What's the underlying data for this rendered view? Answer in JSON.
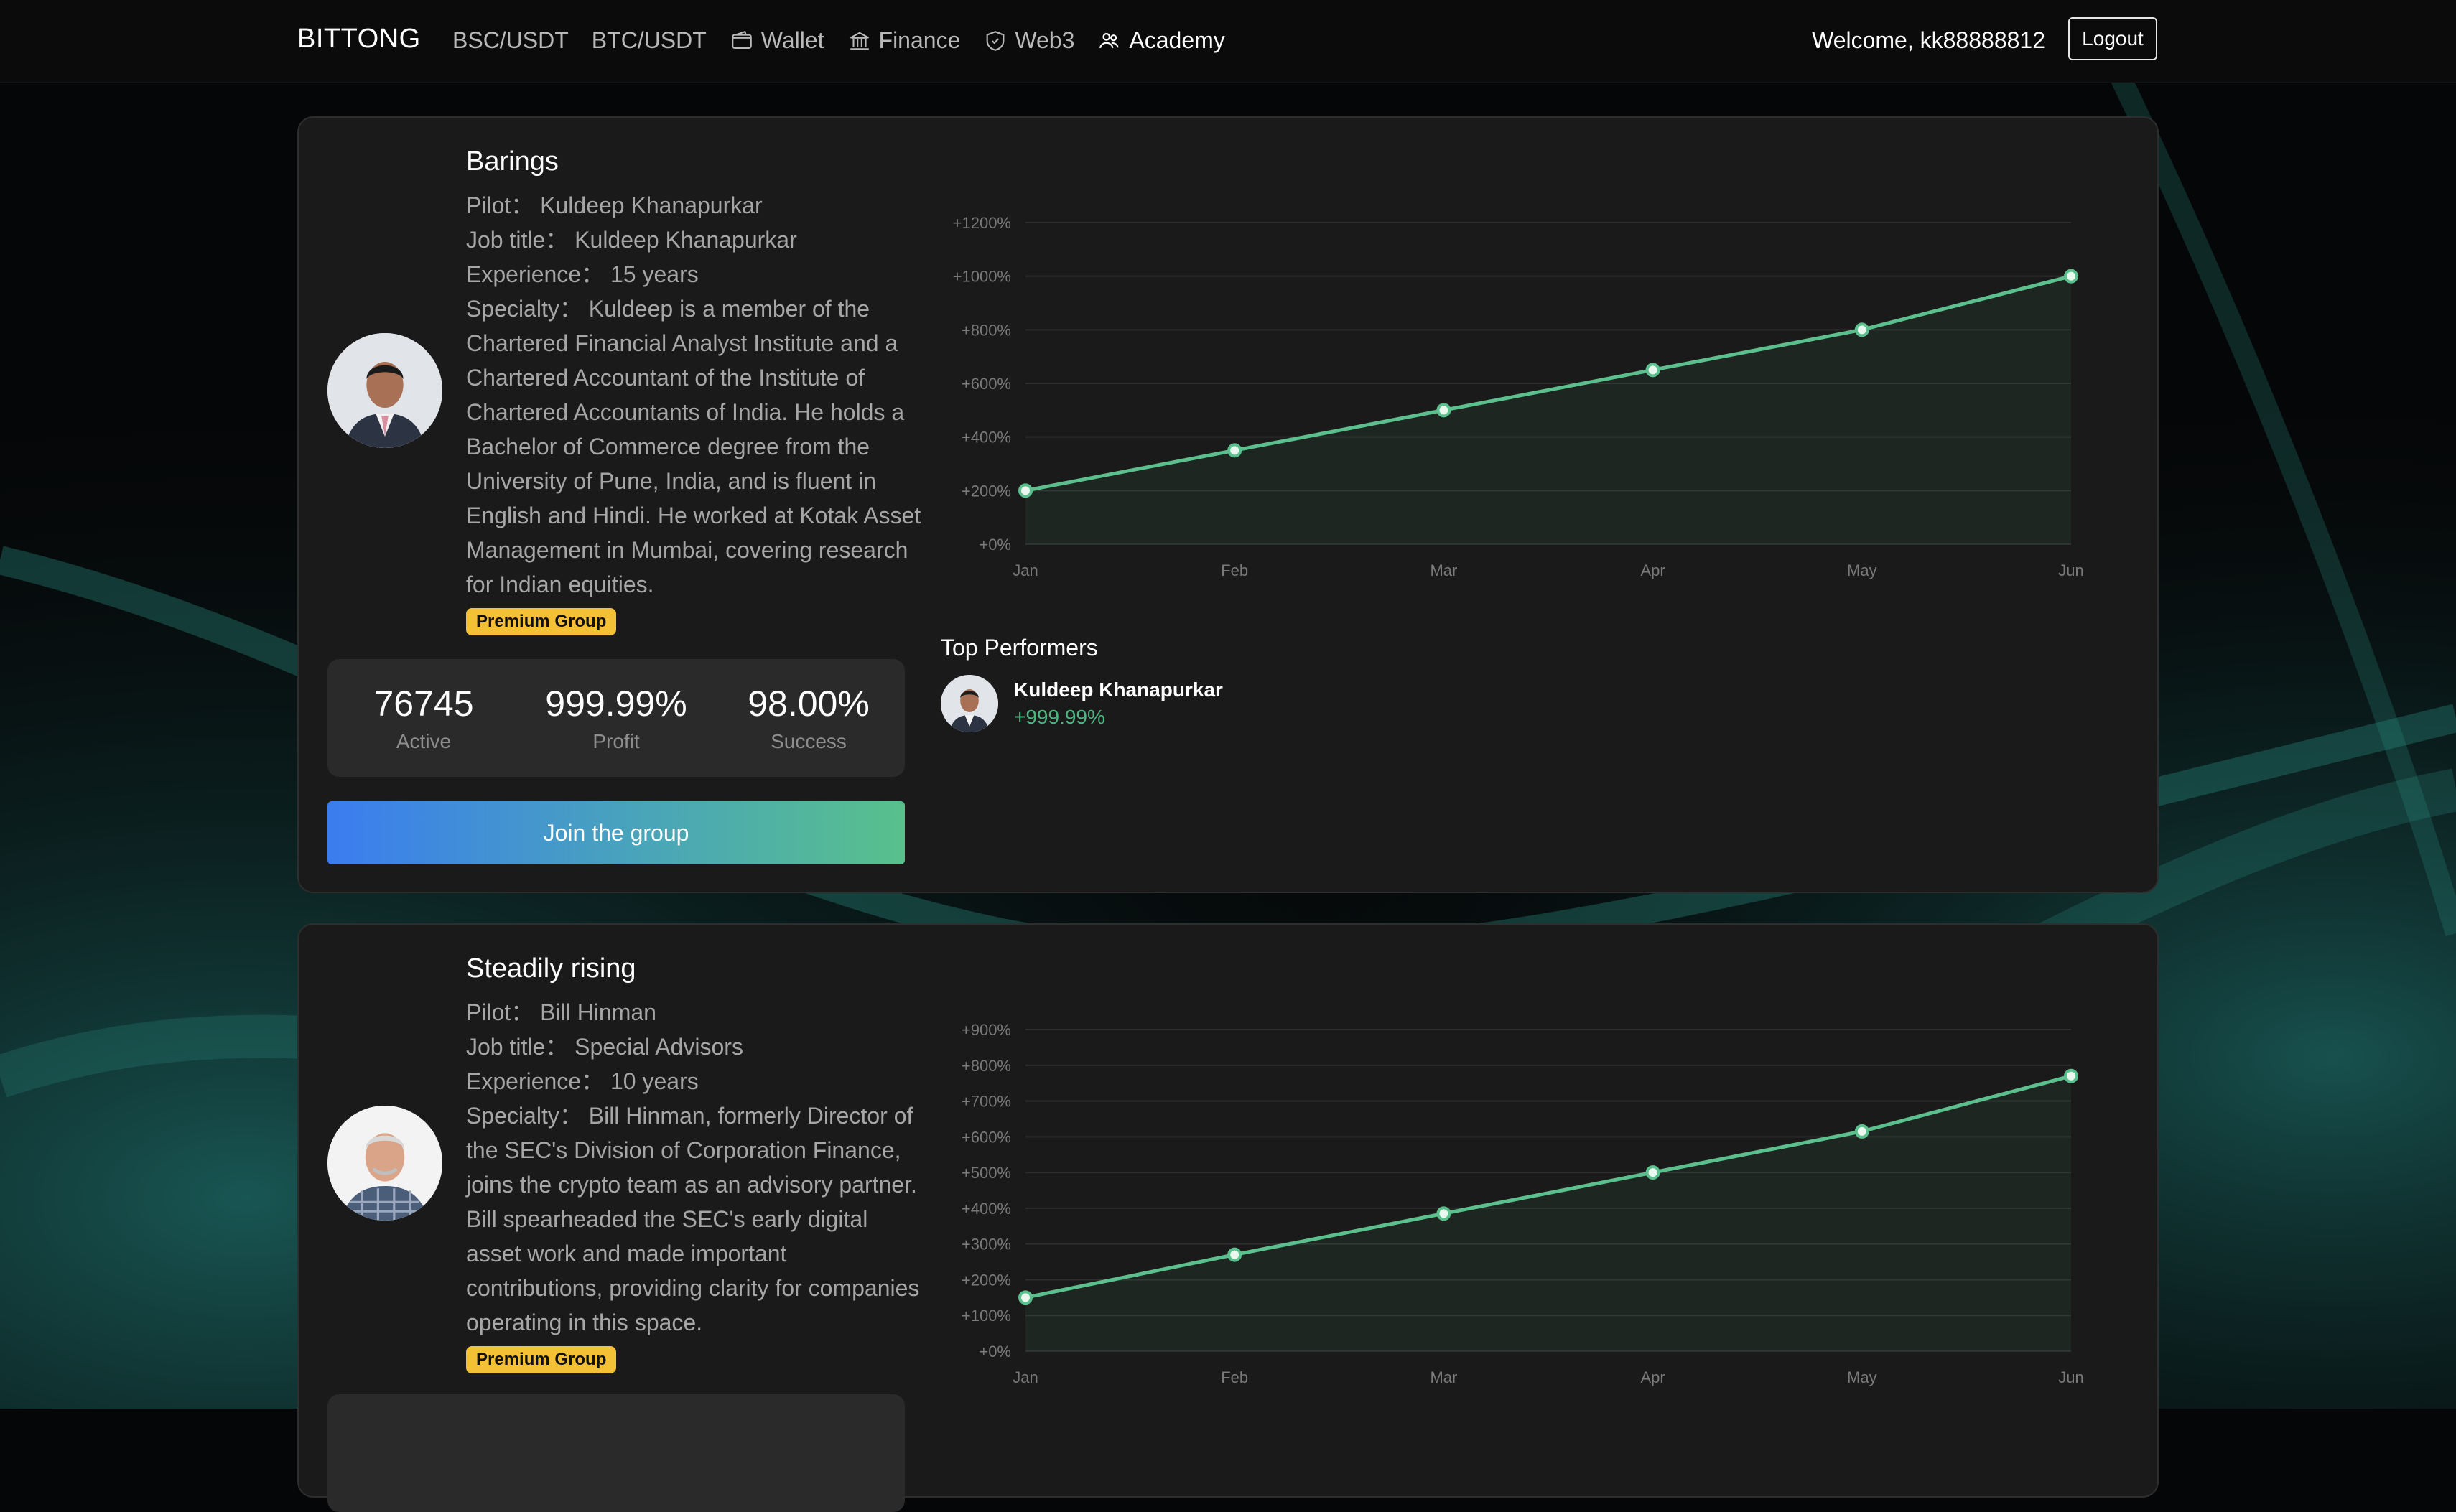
{
  "nav": {
    "brand": "BITTONG",
    "links": [
      {
        "label": "BSC/USDT",
        "icon": ""
      },
      {
        "label": "BTC/USDT",
        "icon": ""
      },
      {
        "label": "Wallet",
        "icon": "wallet-icon"
      },
      {
        "label": "Finance",
        "icon": "bank-icon"
      },
      {
        "label": "Web3",
        "icon": "shield-icon"
      },
      {
        "label": "Academy",
        "icon": "users-icon"
      }
    ],
    "welcome": "Welcome, kk88888812",
    "logout": "Logout"
  },
  "cards": [
    {
      "title": "Barings",
      "pilot": "Pilot： Kuldeep Khanapurkar",
      "job_title": "Job title： Kuldeep Khanapurkar",
      "experience": "Experience： 15 years",
      "specialty": "Specialty： Kuldeep is a member of the Chartered Financial Analyst Institute and a Chartered Accountant of the Institute of Chartered Accountants of India. He holds a Bachelor of Commerce degree from the University of Pune, India, and is fluent in English and Hindi. He worked at Kotak Asset Management in Mumbai, covering research for Indian equities.",
      "badge": "Premium Group",
      "stats": [
        {
          "value": "76745",
          "label": "Active"
        },
        {
          "value": "999.99%",
          "label": "Profit"
        },
        {
          "value": "98.00%",
          "label": "Success"
        }
      ],
      "join": "Join the group",
      "top_performers_title": "Top Performers",
      "top_performers": [
        {
          "name": "Kuldeep Khanapurkar",
          "value": "+999.99%"
        }
      ]
    },
    {
      "title": "Steadily rising",
      "pilot": "Pilot： Bill Hinman",
      "job_title": "Job title： Special Advisors",
      "experience": "Experience： 10 years",
      "specialty": "Specialty： Bill Hinman, formerly Director of the SEC's Division of Corporation Finance, joins the crypto team as an advisory partner. Bill spearheaded the SEC's early digital asset work and made important contributions, providing clarity for companies operating in this space.",
      "badge": "Premium Group"
    }
  ],
  "colors": {
    "line": "#5cc08e",
    "badge": "#f4c035",
    "card": "#1a1a1a"
  },
  "chart_data": [
    {
      "type": "area",
      "categories": [
        "Jan",
        "Feb",
        "Mar",
        "Apr",
        "May",
        "Jun"
      ],
      "values": [
        200,
        350,
        500,
        650,
        800,
        1000
      ],
      "yticks": [
        "+0%",
        "+200%",
        "+400%",
        "+600%",
        "+800%",
        "+1000%",
        "+1200%"
      ],
      "ylim": [
        0,
        1200
      ],
      "grid": true
    },
    {
      "type": "area",
      "categories": [
        "Jan",
        "Feb",
        "Mar",
        "Apr",
        "May",
        "Jun"
      ],
      "values": [
        150,
        270,
        385,
        500,
        615,
        770
      ],
      "yticks": [
        "+0%",
        "+100%",
        "+200%",
        "+300%",
        "+400%",
        "+500%",
        "+600%",
        "+700%",
        "+800%",
        "+900%"
      ],
      "ylim": [
        0,
        900
      ],
      "grid": true
    }
  ]
}
